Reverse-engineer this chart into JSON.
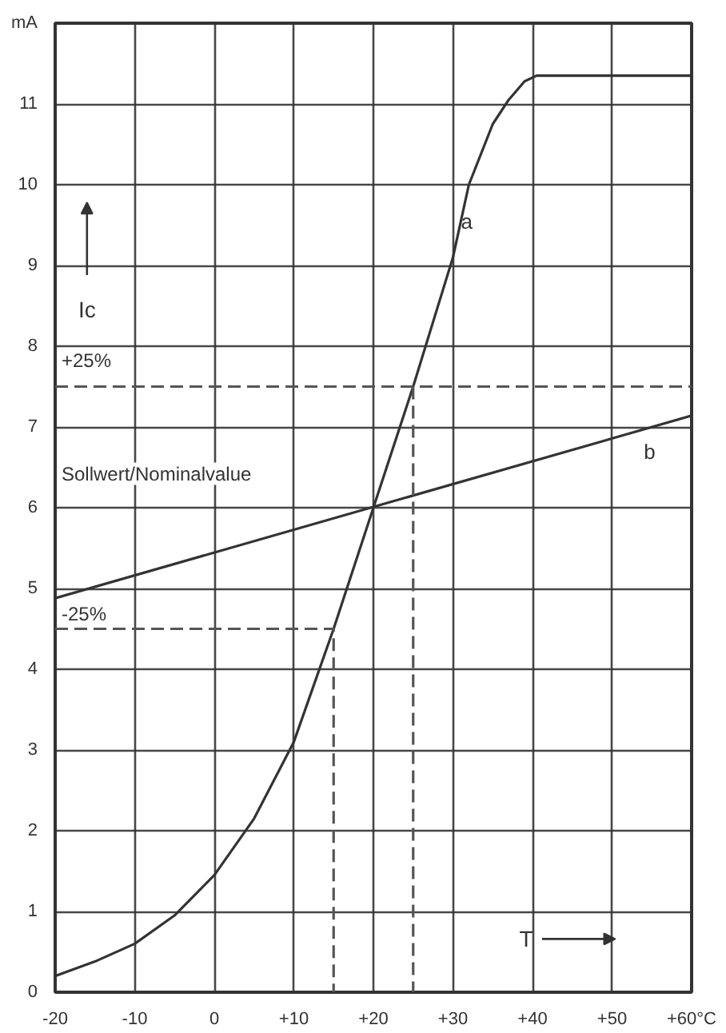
{
  "chart_data": {
    "type": "line",
    "xlabel": "T",
    "ylabel": "Ic",
    "xlim": [
      -20,
      60
    ],
    "ylim": [
      0,
      12
    ],
    "xticks": [
      {
        "value": -20,
        "label": "-20"
      },
      {
        "value": -10,
        "label": "-10"
      },
      0,
      {
        "value": 10,
        "label": "+10"
      },
      {
        "value": 20,
        "label": "+20"
      },
      {
        "value": 30,
        "label": "+30"
      },
      {
        "value": 40,
        "label": "+40"
      },
      {
        "value": 50,
        "label": "+50"
      },
      {
        "value": 60,
        "label": "+60°C"
      }
    ],
    "yticks": [
      0,
      1,
      2,
      3,
      4,
      5,
      6,
      7,
      8,
      9,
      10,
      11,
      {
        "value": 12,
        "label": "mA"
      }
    ],
    "grid": true,
    "marker": "none",
    "line_style": "solid",
    "series": [
      {
        "name": "a",
        "color": "#333333",
        "x": [
          -20,
          -15,
          -10,
          -5,
          0,
          5,
          10,
          15,
          20,
          25,
          30,
          32,
          35,
          37,
          39,
          40.5,
          60
        ],
        "values": [
          0.2,
          0.38,
          0.6,
          0.95,
          1.45,
          2.15,
          3.1,
          4.5,
          6,
          7.5,
          9.1,
          10.0,
          10.75,
          11.05,
          11.28,
          11.35,
          11.35
        ]
      },
      {
        "name": "b",
        "color": "#333333",
        "x": [
          -20,
          60
        ],
        "values": [
          4.88,
          7.14
        ]
      },
      {
        "color": "#555555",
        "line_style": "dashed",
        "x": [
          -20,
          60
        ],
        "values": [
          7.5,
          7.5
        ]
      },
      {
        "color": "#555555",
        "line_style": "dashed",
        "x": [
          25,
          25
        ],
        "values": [
          7.5,
          0
        ]
      },
      {
        "color": "#555555",
        "line_style": "dashed",
        "x": [
          -20,
          15,
          15
        ],
        "values": [
          4.5,
          4.5,
          0
        ]
      }
    ],
    "annotations": [
      "+25%",
      "-25%",
      "Sollwert/Nominalvalue"
    ]
  }
}
